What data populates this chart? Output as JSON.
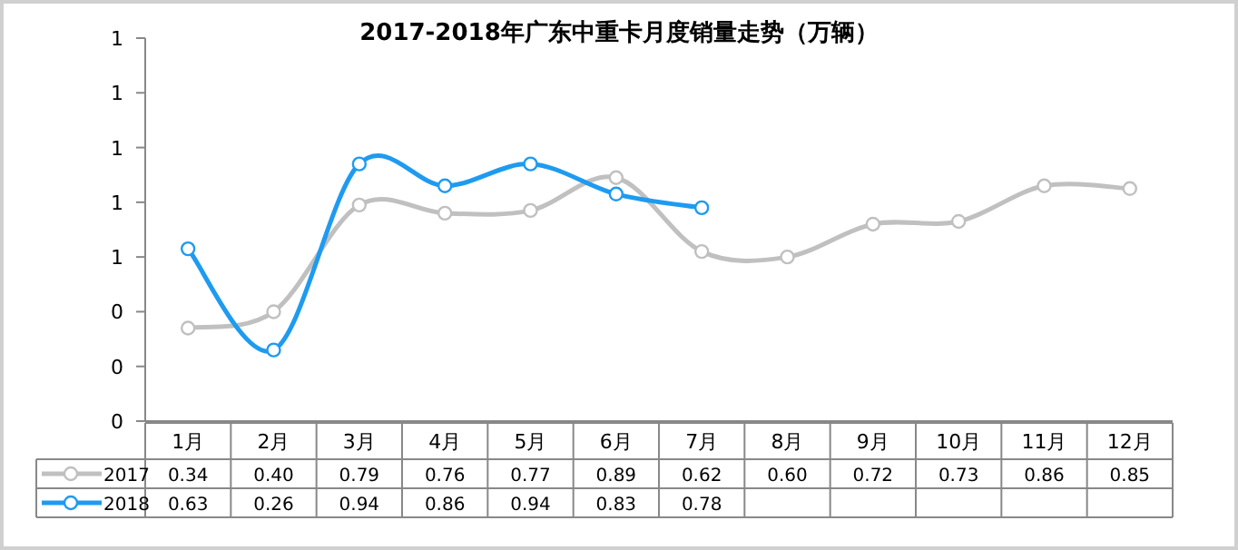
{
  "chart_data": {
    "type": "line",
    "title": "2017-2018年广东中重卡月度销量走势（万辆）",
    "categories": [
      "1月",
      "2月",
      "3月",
      "4月",
      "5月",
      "6月",
      "7月",
      "8月",
      "9月",
      "10月",
      "11月",
      "12月"
    ],
    "series": [
      {
        "name": "2017",
        "color": "#c0c0c0",
        "values": [
          0.34,
          0.4,
          0.79,
          0.76,
          0.77,
          0.89,
          0.62,
          0.6,
          0.72,
          0.73,
          0.86,
          0.85
        ],
        "value_labels": [
          "0.34",
          "0.40",
          "0.79",
          "0.76",
          "0.77",
          "0.89",
          "0.62",
          "0.60",
          "0.72",
          "0.73",
          "0.86",
          "0.85"
        ]
      },
      {
        "name": "2018",
        "color": "#1e9bf0",
        "values": [
          0.63,
          0.26,
          0.94,
          0.86,
          0.94,
          0.83,
          0.78,
          null,
          null,
          null,
          null,
          null
        ],
        "value_labels": [
          "0.63",
          "0.26",
          "0.94",
          "0.86",
          "0.94",
          "0.83",
          "0.78",
          null,
          null,
          null,
          null,
          null
        ]
      }
    ],
    "ylim": [
      0,
      1.4
    ],
    "yticks": [
      {
        "value": 0,
        "label": "0"
      },
      {
        "value": 0.2,
        "label": "0"
      },
      {
        "value": 0.4,
        "label": "0"
      },
      {
        "value": 0.6,
        "label": "1"
      },
      {
        "value": 0.8,
        "label": "1"
      },
      {
        "value": 1.0,
        "label": "1"
      },
      {
        "value": 1.2,
        "label": "1"
      },
      {
        "value": 1.4,
        "label": "1"
      }
    ],
    "legend": "left",
    "marker": "circle",
    "line_style": "solid"
  }
}
